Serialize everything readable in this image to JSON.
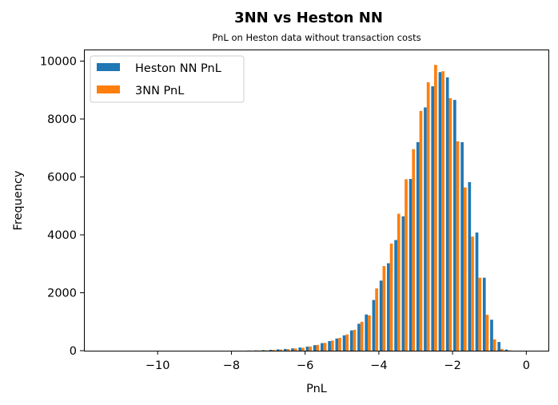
{
  "chart_data": {
    "type": "bar",
    "title": "3NN vs Heston NN",
    "subtitle": "PnL on Heston data without transaction costs",
    "xlabel": "PnL",
    "ylabel": "Frequency",
    "xlim": [
      -12.0,
      0.6
    ],
    "ylim": [
      0,
      10400
    ],
    "xticks": [
      -10,
      -8,
      -6,
      -4,
      -2,
      0
    ],
    "xtick_labels": [
      "−10",
      "−8",
      "−6",
      "−4",
      "−2",
      "0"
    ],
    "yticks": [
      0,
      2000,
      4000,
      6000,
      8000,
      10000
    ],
    "ytick_labels": [
      "0",
      "2000",
      "4000",
      "6000",
      "8000",
      "10000"
    ],
    "grid": false,
    "legend_position": "top-left",
    "bin_width": 0.2,
    "bin_starts": [
      -7.6,
      -7.4,
      -7.2,
      -7.0,
      -6.8,
      -6.6,
      -6.4,
      -6.2,
      -6.0,
      -5.8,
      -5.6,
      -5.4,
      -5.2,
      -5.0,
      -4.8,
      -4.6,
      -4.4,
      -4.2,
      -4.0,
      -3.8,
      -3.6,
      -3.4,
      -3.2,
      -3.0,
      -2.8,
      -2.6,
      -2.4,
      -2.2,
      -2.0,
      -1.8,
      -1.6,
      -1.4,
      -1.2,
      -1.0,
      -0.8,
      -0.6,
      -0.4,
      -0.2
    ],
    "series": [
      {
        "name": "Heston NN PnL",
        "color": "#1f77b4",
        "values": [
          5,
          10,
          20,
          30,
          45,
          60,
          80,
          110,
          140,
          190,
          260,
          330,
          420,
          530,
          700,
          930,
          1250,
          1750,
          2420,
          3020,
          3820,
          4640,
          5930,
          7200,
          8400,
          9130,
          9620,
          9440,
          8660,
          7200,
          5820,
          4080,
          2520,
          1070,
          300,
          40,
          0,
          0
        ]
      },
      {
        "name": "3NN PnL",
        "color": "#ff7f0e",
        "values": [
          5,
          10,
          15,
          28,
          40,
          55,
          75,
          100,
          145,
          200,
          270,
          350,
          440,
          560,
          720,
          1000,
          1220,
          2150,
          2920,
          3700,
          4730,
          5920,
          6960,
          8280,
          9270,
          9870,
          9650,
          8720,
          7230,
          5640,
          3940,
          2520,
          1240,
          390,
          60,
          10,
          0,
          0
        ]
      }
    ]
  }
}
